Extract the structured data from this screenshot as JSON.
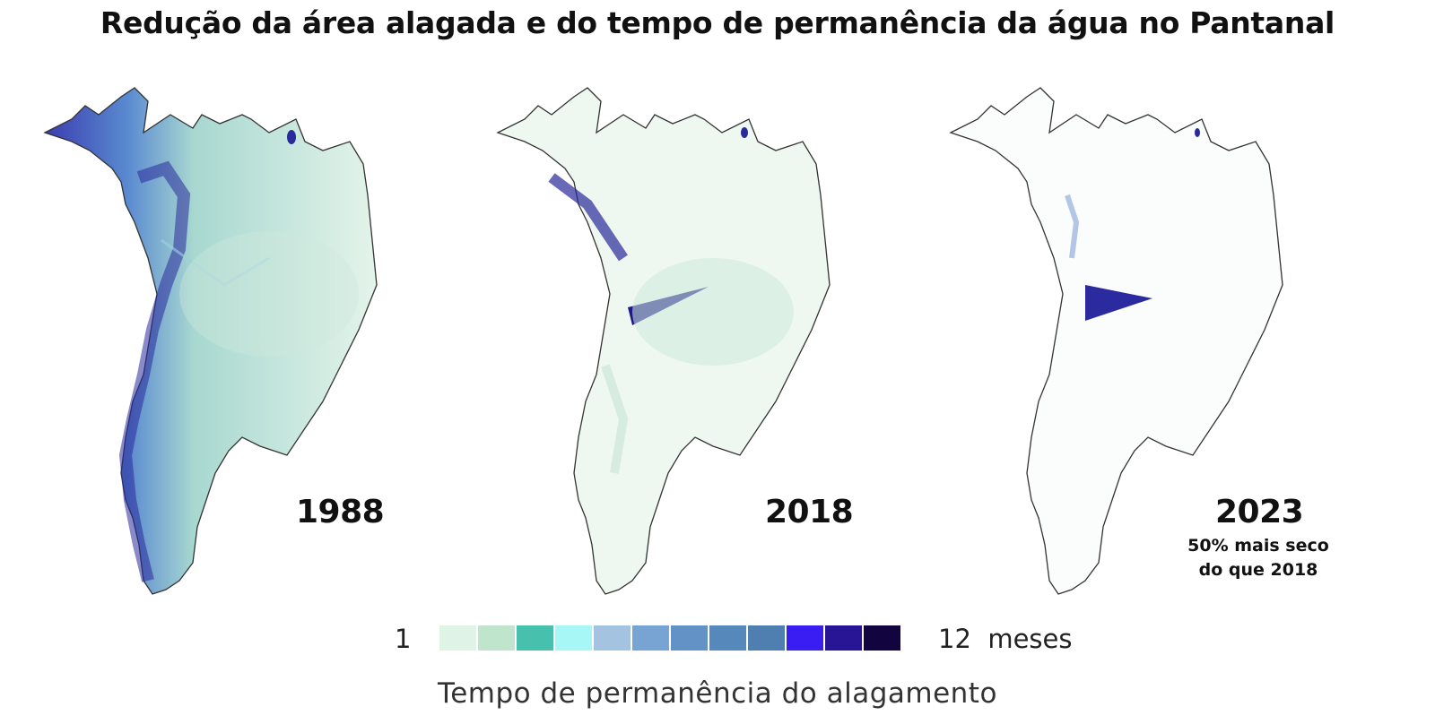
{
  "title": "Redução da área alagada e do tempo de permanência da água no Pantanal",
  "maps": [
    {
      "year": "1988",
      "note_lines": [],
      "wetness": "high"
    },
    {
      "year": "2018",
      "note_lines": [],
      "wetness": "medium"
    },
    {
      "year": "2023",
      "note_lines": [
        "50% mais seco",
        "do que 2018"
      ],
      "wetness": "low"
    }
  ],
  "legend": {
    "min_label": "1",
    "max_label": "12  meses",
    "colors": [
      "#dff3e6",
      "#bfe6cc",
      "#47c0ad",
      "#a8f7f7",
      "#a3c3e0",
      "#78a4d3",
      "#6393c6",
      "#5688bb",
      "#4f7eb0",
      "#3a1df0",
      "#281596",
      "#12053f"
    ],
    "axis_label": "Tempo de permanência do alagamento"
  }
}
